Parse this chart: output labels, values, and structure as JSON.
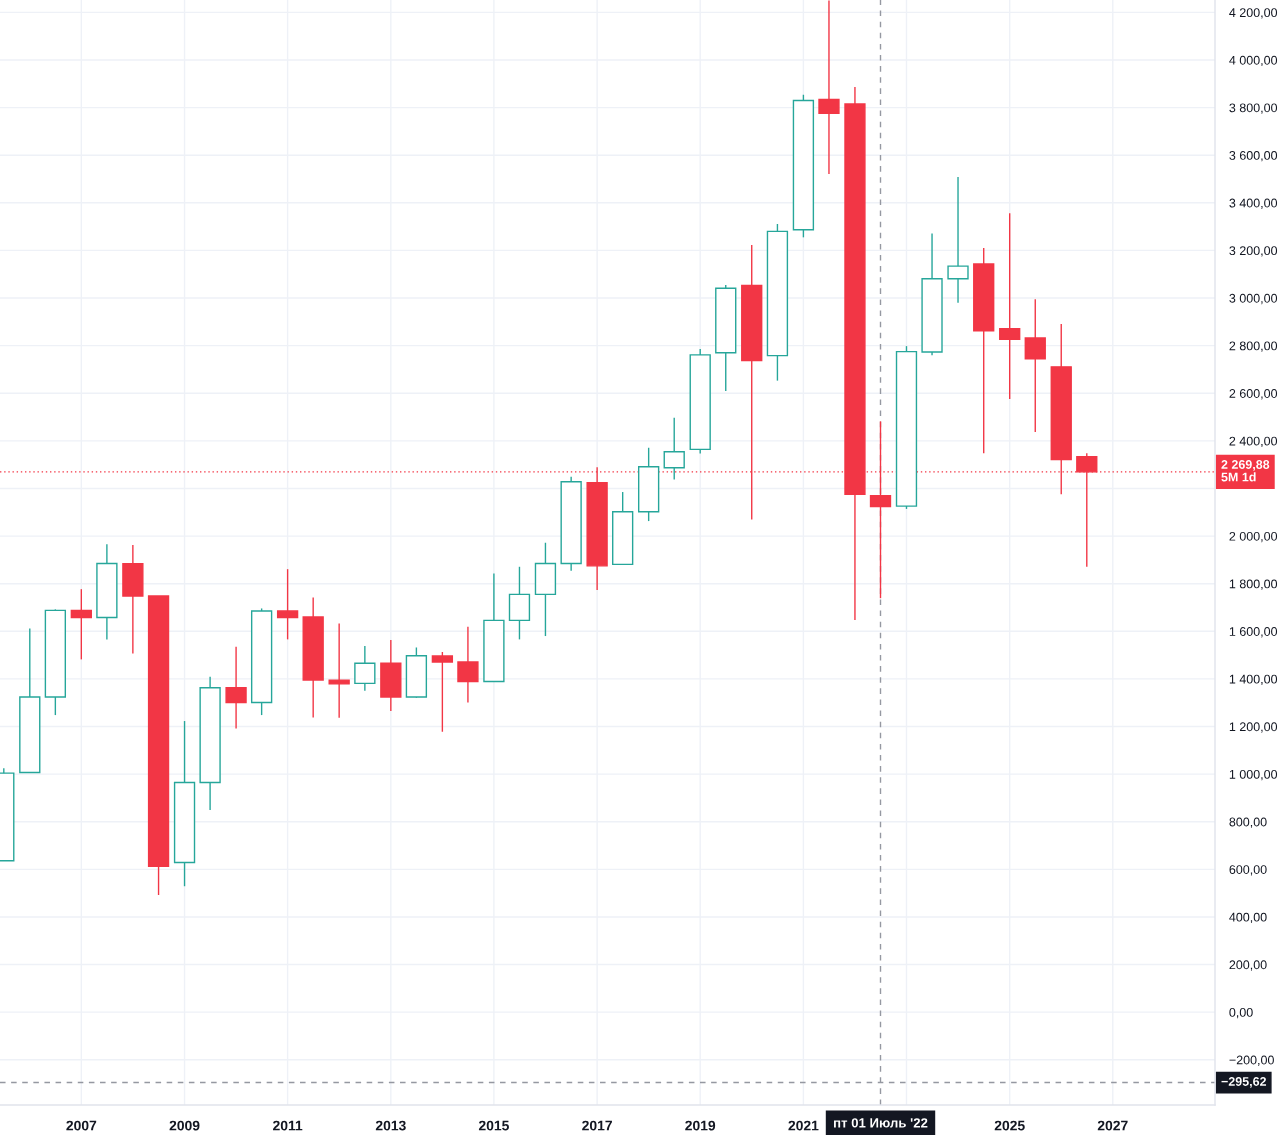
{
  "chart_data": {
    "type": "candlestick",
    "x": [
      "2005-07",
      "2006-01",
      "2006-07",
      "2007-01",
      "2007-07",
      "2008-01",
      "2008-07",
      "2009-01",
      "2009-07",
      "2010-01",
      "2010-07",
      "2011-01",
      "2011-07",
      "2012-01",
      "2012-07",
      "2013-01",
      "2013-07",
      "2014-01",
      "2014-07",
      "2015-01",
      "2015-07",
      "2016-01",
      "2016-07",
      "2017-01",
      "2017-07",
      "2018-01",
      "2018-07",
      "2019-01",
      "2019-07",
      "2020-01",
      "2020-07",
      "2021-01",
      "2021-07",
      "2022-01",
      "2022-07",
      "2023-01",
      "2023-07",
      "2024-01",
      "2024-07",
      "2025-01",
      "2025-07",
      "2026-01",
      "2026-07"
    ],
    "ohlc": [
      [
        636,
        1025,
        636,
        1004
      ],
      [
        1007,
        1612,
        1007,
        1324
      ],
      [
        1324,
        1692,
        1248,
        1688
      ],
      [
        1688,
        1777,
        1482,
        1658
      ],
      [
        1658,
        1966,
        1566,
        1885
      ],
      [
        1884,
        1962,
        1507,
        1748
      ],
      [
        1748,
        1748,
        492,
        613
      ],
      [
        629,
        1223,
        529,
        965
      ],
      [
        965,
        1409,
        849,
        1363
      ],
      [
        1363,
        1535,
        1192,
        1301
      ],
      [
        1301,
        1696,
        1248,
        1685
      ],
      [
        1685,
        1861,
        1566,
        1658
      ],
      [
        1660,
        1742,
        1238,
        1395
      ],
      [
        1395,
        1633,
        1237,
        1379
      ],
      [
        1381,
        1538,
        1350,
        1466
      ],
      [
        1466,
        1563,
        1265,
        1324
      ],
      [
        1324,
        1532,
        1321,
        1497
      ],
      [
        1496,
        1513,
        1178,
        1471
      ],
      [
        1471,
        1619,
        1301,
        1389
      ],
      [
        1389,
        1843,
        1389,
        1646
      ],
      [
        1646,
        1871,
        1566,
        1755
      ],
      [
        1755,
        1972,
        1580,
        1885
      ],
      [
        1885,
        2249,
        1854,
        2228
      ],
      [
        2224,
        2289,
        1773,
        1875
      ],
      [
        1881,
        2185,
        1881,
        2102
      ],
      [
        2102,
        2371,
        2063,
        2291
      ],
      [
        2287,
        2497,
        2238,
        2354
      ],
      [
        2364,
        2786,
        2347,
        2761
      ],
      [
        2770,
        3055,
        2609,
        3041
      ],
      [
        3053,
        3223,
        2070,
        2737
      ],
      [
        2758,
        3311,
        2653,
        3280
      ],
      [
        3287,
        3854,
        3255,
        3830
      ],
      [
        3834,
        4250,
        3521,
        3776
      ],
      [
        3815,
        3886,
        1647,
        2175
      ],
      [
        2170,
        2482,
        1739,
        2124
      ],
      [
        2126,
        2798,
        2114,
        2775
      ],
      [
        2773,
        3271,
        2760,
        3081
      ],
      [
        3081,
        3508,
        2980,
        3134
      ],
      [
        3143,
        3210,
        2348,
        2862
      ],
      [
        2871,
        3356,
        2576,
        2827
      ],
      [
        2832,
        2995,
        2437,
        2745
      ],
      [
        2711,
        2891,
        2176,
        2321
      ],
      [
        2333,
        2348,
        1871,
        2269.88
      ]
    ],
    "colors": [
      "#26a69a",
      "#26a69a",
      "#26a69a",
      "#f23645",
      "#26a69a",
      "#f23645",
      "#f23645",
      "#26a69a",
      "#26a69a",
      "#f23645",
      "#26a69a",
      "#f23645",
      "#f23645",
      "#f23645",
      "#26a69a",
      "#f23645",
      "#26a69a",
      "#f23645",
      "#f23645",
      "#26a69a",
      "#26a69a",
      "#26a69a",
      "#26a69a",
      "#f23645",
      "#26a69a",
      "#26a69a",
      "#26a69a",
      "#26a69a",
      "#26a69a",
      "#f23645",
      "#26a69a",
      "#26a69a",
      "#f23645",
      "#f23645",
      "#f23645",
      "#26a69a",
      "#26a69a",
      "#26a69a",
      "#f23645",
      "#f23645",
      "#f23645",
      "#f23645",
      "#f23645"
    ],
    "xlim": [
      "2005-06-04",
      "2028-12-25"
    ],
    "ylim": [
      -390,
      4252
    ],
    "xticks": [
      "2007",
      "2009",
      "2011",
      "2013",
      "2015",
      "2017",
      "2019",
      "2021",
      {
        "value": "2023",
        "label": null
      },
      "2025",
      "2027"
    ],
    "yticks": [
      {
        "value": -200,
        "label": "−200,00"
      },
      {
        "value": 0,
        "label": "0,00"
      },
      {
        "value": 200,
        "label": "200,00"
      },
      {
        "value": 400,
        "label": "400,00"
      },
      {
        "value": 600,
        "label": "600,00"
      },
      {
        "value": 800,
        "label": "800,00"
      },
      {
        "value": 1000,
        "label": "1 000,00"
      },
      {
        "value": 1200,
        "label": "1 200,00"
      },
      {
        "value": 1400,
        "label": "1 400,00"
      },
      {
        "value": 1600,
        "label": "1 600,00"
      },
      {
        "value": 1800,
        "label": "1 800,00"
      },
      {
        "value": 2000,
        "label": "2 000,00"
      },
      {
        "value": 2200,
        "label": null
      },
      {
        "value": 2400,
        "label": "2 400,00"
      },
      {
        "value": 2600,
        "label": "2 600,00"
      },
      {
        "value": 2800,
        "label": "2 800,00"
      },
      {
        "value": 3000,
        "label": "3 000,00"
      },
      {
        "value": 3200,
        "label": "3 200,00"
      },
      {
        "value": 3400,
        "label": "3 400,00"
      },
      {
        "value": 3600,
        "label": "3 600,00"
      },
      {
        "value": 3800,
        "label": "3 800,00"
      },
      {
        "value": 4000,
        "label": "4 000,00"
      },
      {
        "value": 4200,
        "label": "4 200,00"
      }
    ],
    "grid": true,
    "ref_lines": [
      {
        "axis": "y",
        "value": 2269.88,
        "label": "2 269,88\n5M 1d",
        "color": "#f23645",
        "line_style": "dotted"
      },
      {
        "axis": "x",
        "value": "2022-07-01",
        "label": "пт 01 Июль '22",
        "color": "#9598a1",
        "line_style": "dashed"
      },
      {
        "axis": "y",
        "value": -295.62,
        "label": "−295,62",
        "color": "#9598a1",
        "line_style": "dashed"
      }
    ]
  }
}
